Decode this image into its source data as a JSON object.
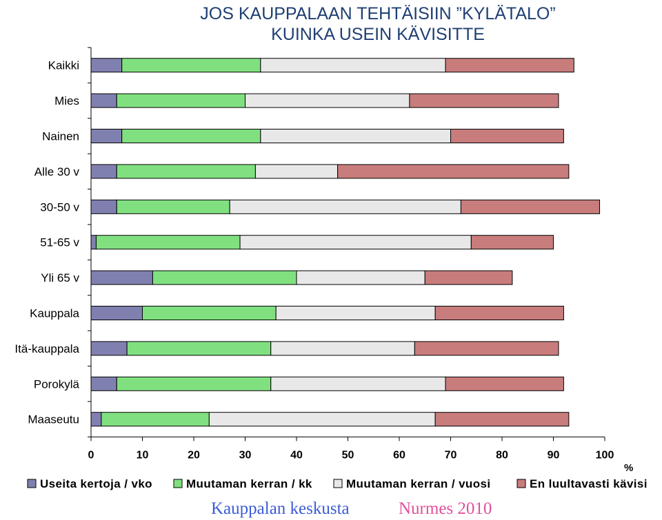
{
  "chart_data": {
    "type": "bar",
    "orientation": "horizontal",
    "stacked": true,
    "title": [
      "JOS KAUPPALAAN TEHTÄISIIN ”KYLÄTALO”",
      "KUINKA USEIN KÄVISITTE"
    ],
    "categories": [
      "Kaikki",
      "Mies",
      "Nainen",
      "Alle 30 v",
      "30-50 v",
      "51-65 v",
      "Yli 65 v",
      "Kauppala",
      "Itä-kauppala",
      "Porokylä",
      "Maaseutu"
    ],
    "series": [
      {
        "name": "Useita kertoja / vko",
        "color": "#8080b0",
        "values": [
          6,
          5,
          6,
          5,
          5,
          1,
          12,
          10,
          7,
          5,
          2
        ]
      },
      {
        "name": "Muutaman kerran / kk",
        "color": "#80e080",
        "values": [
          27,
          25,
          27,
          27,
          22,
          28,
          28,
          26,
          28,
          30,
          21
        ]
      },
      {
        "name": "Muutaman kerran / vuosi",
        "color": "#e8e8e8",
        "values": [
          36,
          32,
          37,
          16,
          45,
          45,
          25,
          31,
          28,
          34,
          44
        ]
      },
      {
        "name": "En luultavasti kävisi",
        "color": "#c87c7c",
        "values": [
          25,
          29,
          22,
          45,
          27,
          16,
          17,
          25,
          28,
          23,
          26
        ]
      }
    ],
    "xlim": [
      0,
      100
    ],
    "xticks": [
      "0",
      "10",
      "20",
      "30",
      "40",
      "50",
      "60",
      "70",
      "80",
      "90",
      "100"
    ],
    "xunit": "%",
    "legend_position": "bottom",
    "grid": false
  },
  "footer": {
    "left": "Kauppalan keskusta",
    "right": "Nurmes 2010"
  }
}
